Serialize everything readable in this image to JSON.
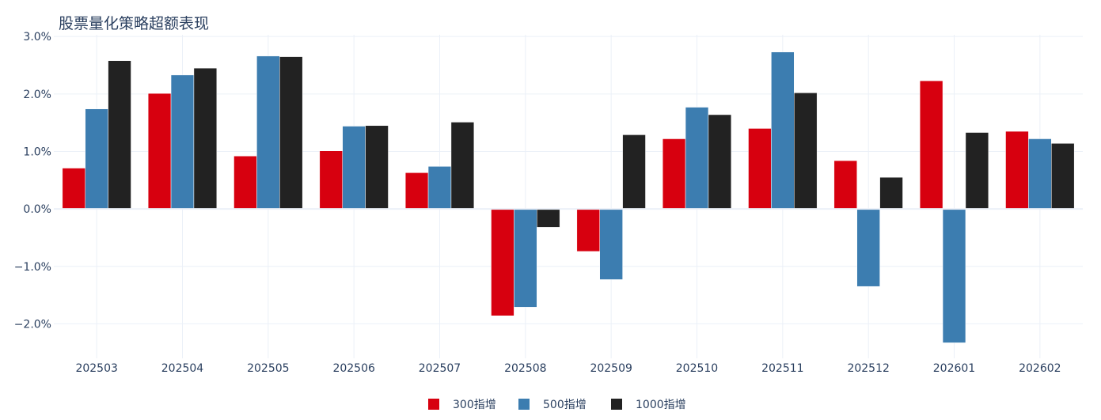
{
  "chart_data": {
    "type": "bar",
    "title": "股票量化策略超额表现",
    "xlabel": "",
    "ylabel": "",
    "ylim": [
      -0.026,
      0.0303
    ],
    "ytick_values": [
      -0.02,
      -0.01,
      0.0,
      0.01,
      0.02,
      0.03
    ],
    "ytick_labels": [
      "−2.0%",
      "−1.0%",
      "0.0%",
      "1.0%",
      "2.0%",
      "3.0%"
    ],
    "categories": [
      "202503",
      "202504",
      "202505",
      "202506",
      "202507",
      "202508",
      "202509",
      "202510",
      "202511",
      "202512",
      "202601",
      "202602"
    ],
    "series": [
      {
        "name": "300指增",
        "color": "#d7000f",
        "values": [
          0.0071,
          0.0201,
          0.0092,
          0.0101,
          0.0063,
          -0.0186,
          -0.0074,
          0.0122,
          0.014,
          0.0084,
          0.0223,
          0.0135
        ]
      },
      {
        "name": "500指增",
        "color": "#3c7db0",
        "values": [
          0.0174,
          0.0233,
          0.0266,
          0.0144,
          0.0074,
          -0.0171,
          -0.0123,
          0.0177,
          0.0273,
          -0.0135,
          -0.0233,
          0.0122
        ]
      },
      {
        "name": "1000指增",
        "color": "#222222",
        "values": [
          0.0258,
          0.0245,
          0.0265,
          0.0145,
          0.0151,
          -0.0032,
          0.0129,
          0.0164,
          0.0202,
          0.0055,
          0.0133,
          0.0114
        ]
      }
    ],
    "grid": true,
    "legend_position": "bottom-center"
  }
}
